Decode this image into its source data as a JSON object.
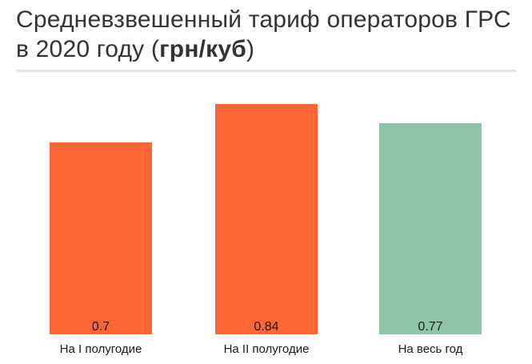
{
  "title": {
    "main": "Средневзвешенный тариф операторов ГРС в 2020 году (",
    "unit": "грн/куб",
    "close": ")"
  },
  "chart_data": {
    "type": "bar",
    "title": "Средневзвешенный тариф операторов ГРС в 2020 году (грн/куб)",
    "categories": [
      "На I полугодие",
      "На II полугодие",
      "На весь год"
    ],
    "values": [
      0.7,
      0.84,
      0.77
    ],
    "value_labels": [
      "0.7",
      "0.84",
      "0.77"
    ],
    "colors": [
      "#ff6633",
      "#ff6633",
      "#8fc4a8"
    ],
    "ylim": [
      0,
      0.84
    ],
    "grid": false,
    "xlabel": "",
    "ylabel": ""
  }
}
